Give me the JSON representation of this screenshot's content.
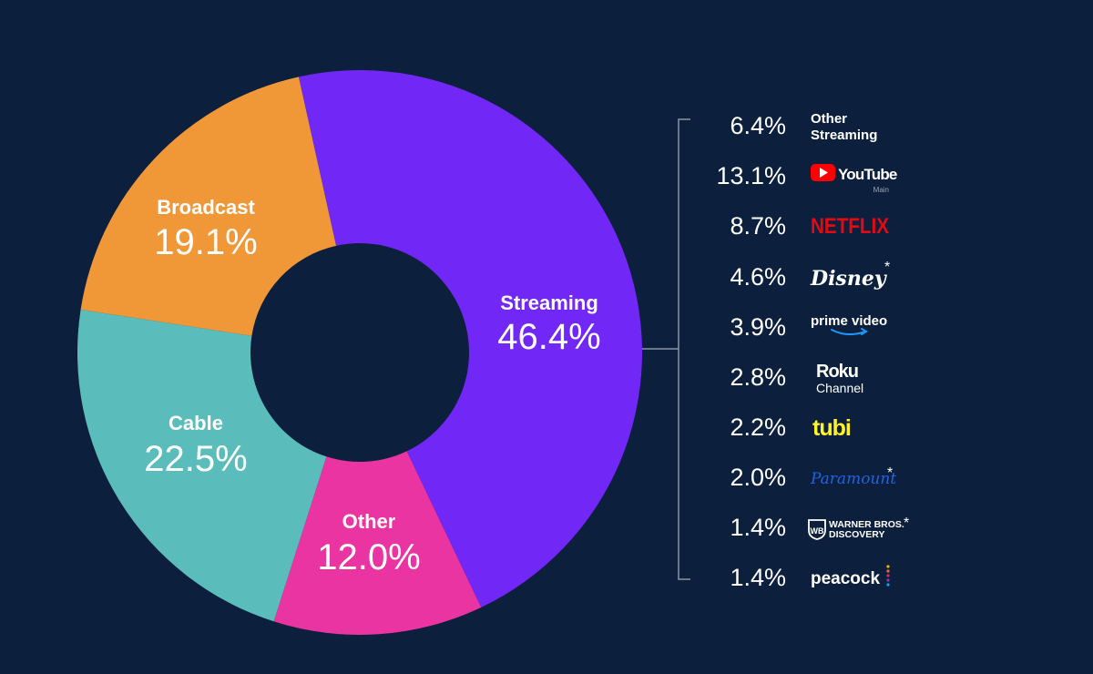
{
  "chart_data": {
    "type": "pie",
    "style": "donut",
    "slices": [
      {
        "label": "Streaming",
        "value": 46.4,
        "display": "46.4%",
        "color": "#7127f5"
      },
      {
        "label": "Other",
        "value": 12.0,
        "display": "12.0%",
        "color": "#ea34a2"
      },
      {
        "label": "Cable",
        "value": 22.5,
        "display": "22.5%",
        "color": "#5bbdbb"
      },
      {
        "label": "Broadcast",
        "value": 19.1,
        "display": "19.1%",
        "color": "#f09838"
      }
    ],
    "breakdown": {
      "parent": "Streaming",
      "items": [
        {
          "value": 6.4,
          "display": "6.4%",
          "name": "Other Streaming",
          "logo": "other-streaming-text"
        },
        {
          "value": 13.1,
          "display": "13.1%",
          "name": "YouTube",
          "sub": "Main",
          "logo": "youtube-logo"
        },
        {
          "value": 8.7,
          "display": "8.7%",
          "name": "NETFLIX",
          "logo": "netflix-logo"
        },
        {
          "value": 4.6,
          "display": "4.6%",
          "name": "Disney",
          "asterisk": "*",
          "logo": "disney-logo"
        },
        {
          "value": 3.9,
          "display": "3.9%",
          "name": "prime video",
          "logo": "prime-video-logo"
        },
        {
          "value": 2.8,
          "display": "2.8%",
          "name": "Roku",
          "sub": "Channel",
          "logo": "roku-channel-logo"
        },
        {
          "value": 2.2,
          "display": "2.2%",
          "name": "tubi",
          "logo": "tubi-logo"
        },
        {
          "value": 2.0,
          "display": "2.0%",
          "name": "Paramount",
          "asterisk": "*",
          "logo": "paramount-logo"
        },
        {
          "value": 1.4,
          "display": "1.4%",
          "name": "WARNER BROS.",
          "sub": "DISCOVERY",
          "asterisk": "*",
          "logo": "warner-bros-discovery-logo"
        },
        {
          "value": 1.4,
          "display": "1.4%",
          "name": "peacock",
          "logo": "peacock-logo"
        }
      ]
    }
  },
  "colors": {
    "background": "#0c1f3d",
    "bracket": "#8a96aa",
    "youtube_red": "#ff0000",
    "netflix_red": "#e50914",
    "prime_blue": "#1a98ff",
    "tubi_yellow": "#fff22b",
    "paramount_blue": "#1f63e0"
  }
}
